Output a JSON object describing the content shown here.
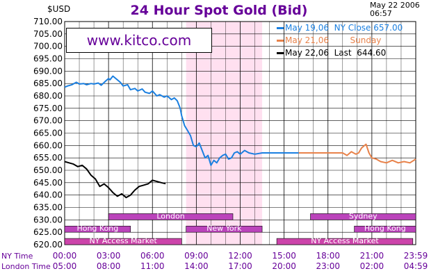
{
  "header": {
    "title": "24 Hour Spot Gold (Bid)",
    "unit": "$USD",
    "date": "May 22 2006",
    "time": "06:57"
  },
  "brand": "www.kitco.com",
  "colors": {
    "title": "#660099",
    "series_ny_close": "#1a7fe0",
    "series_sunday": "#e8824a",
    "series_last": "#000000",
    "market_band": "#bb44bb",
    "ny_pink": "#cc44aa",
    "highlight": "#ffe0f0"
  },
  "x_axis": {
    "rows": [
      {
        "label": "NY Time",
        "ticks": [
          "00:00",
          "03:00",
          "06:00",
          "09:00",
          "12:00",
          "15:00",
          "18:00",
          "21:00",
          "23:59"
        ]
      },
      {
        "label": "London Time",
        "ticks": [
          "05:00",
          "08:00",
          "11:00",
          "14:00",
          "17:00",
          "20:00",
          "23:00",
          "02:00",
          "04:59"
        ]
      }
    ]
  },
  "markets": [
    {
      "label": "London",
      "start": 3,
      "end": 11.5,
      "lane": 1,
      "color": "#bb44bb"
    },
    {
      "label": "Hong Kong",
      "start": 0,
      "end": 4.5,
      "lane": 2,
      "color": "#bb44bb"
    },
    {
      "label": "New York",
      "start": 8.3,
      "end": 13.5,
      "lane": 2,
      "color": "#bb44bb"
    },
    {
      "label": "NY Access Market",
      "start": 0,
      "end": 8,
      "lane": 3,
      "color": "#cc44aa"
    },
    {
      "label": "Sydney",
      "start": 16.8,
      "end": 24,
      "lane": 1,
      "color": "#bb44bb"
    },
    {
      "label": "Hong Kong",
      "start": 19.8,
      "end": 24,
      "lane": 2,
      "color": "#bb44bb"
    },
    {
      "label": "NY Access Market",
      "start": 14.5,
      "end": 23.8,
      "lane": 3,
      "color": "#cc44aa"
    }
  ],
  "highlight_range": [
    8.3,
    13.5
  ],
  "legend": [
    {
      "text": "May 19,06  NY Close 657.00",
      "color": "#1a7fe0"
    },
    {
      "text": "May 21,06        Sunday",
      "color": "#e8824a"
    },
    {
      "text": "May 22,06  Last  644.60",
      "color": "#000000"
    }
  ],
  "chart_data": {
    "type": "line",
    "title": "24 Hour Spot Gold (Bid)",
    "ylabel": "$USD",
    "xlim": [
      0,
      24
    ],
    "ylim": [
      620,
      710
    ],
    "yticks": [
      "620.00",
      "625.00",
      "630.00",
      "635.00",
      "640.00",
      "645.00",
      "650.00",
      "655.00",
      "660.00",
      "665.00",
      "670.00",
      "675.00",
      "680.00",
      "685.00",
      "690.00",
      "695.00",
      "700.00",
      "705.00",
      "710.00"
    ],
    "grid": true,
    "legend_position": "top-right",
    "series": [
      {
        "name": "May 19,06 NY Close 657.00",
        "color": "#1a7fe0",
        "x": [
          0,
          0.2,
          0.5,
          0.8,
          1.0,
          1.3,
          1.5,
          1.8,
          2.0,
          2.3,
          2.5,
          2.8,
          3.0,
          3.1,
          3.3,
          3.5,
          3.8,
          4.0,
          4.3,
          4.5,
          4.8,
          5.0,
          5.3,
          5.5,
          5.8,
          6.0,
          6.3,
          6.5,
          6.8,
          7.0,
          7.3,
          7.5,
          7.7,
          7.9,
          8.0,
          8.2,
          8.4,
          8.6,
          8.8,
          9.0,
          9.2,
          9.4,
          9.6,
          9.8,
          10.0,
          10.2,
          10.4,
          10.6,
          10.8,
          11.0,
          11.2,
          11.4,
          11.6,
          11.8,
          12.0,
          12.3,
          12.6,
          13.0,
          13.5,
          14.0,
          15.0,
          16.0
        ],
        "y": [
          683.5,
          684.0,
          684.5,
          685.5,
          684.8,
          685.0,
          684.5,
          685.0,
          684.8,
          685.2,
          684.3,
          686.0,
          687.0,
          686.5,
          688.0,
          687.0,
          685.5,
          684.0,
          684.5,
          682.5,
          683.0,
          682.0,
          682.8,
          681.5,
          681.0,
          682.0,
          680.0,
          680.5,
          679.5,
          680.0,
          678.5,
          679.2,
          678.0,
          675.0,
          672.0,
          668.0,
          666.0,
          664.0,
          660.0,
          659.5,
          661.0,
          658.0,
          655.0,
          656.0,
          652.0,
          654.0,
          653.0,
          655.0,
          656.0,
          656.5,
          654.5,
          655.0,
          657.0,
          657.5,
          656.5,
          658.0,
          657.0,
          656.5,
          657.0,
          657.0,
          657.0,
          657.0
        ]
      },
      {
        "name": "May 21,06 Sunday",
        "color": "#e8824a",
        "x": [
          16.0,
          17.0,
          18.0,
          18.5,
          19.0,
          19.3,
          19.6,
          19.9,
          20.1,
          20.3,
          20.6,
          20.8,
          21.0,
          21.3,
          21.6,
          22.0,
          22.4,
          22.8,
          23.2,
          23.6,
          24.0
        ],
        "y": [
          657.0,
          657.0,
          657.0,
          657.0,
          657.0,
          656.0,
          657.5,
          656.5,
          657.0,
          659.0,
          660.5,
          657.0,
          655.0,
          654.5,
          653.5,
          653.0,
          654.0,
          653.0,
          653.5,
          653.0,
          654.5
        ]
      },
      {
        "name": "May 22,06 Last 644.60",
        "color": "#000000",
        "x": [
          0,
          0.3,
          0.6,
          0.9,
          1.2,
          1.5,
          1.8,
          2.1,
          2.4,
          2.7,
          3.0,
          3.3,
          3.6,
          3.9,
          4.2,
          4.5,
          4.8,
          5.1,
          5.4,
          5.7,
          6.0,
          6.3,
          6.6,
          6.9
        ],
        "y": [
          653.5,
          653.0,
          652.5,
          651.5,
          652.0,
          650.5,
          648.0,
          646.5,
          643.5,
          644.5,
          643.0,
          641.0,
          639.5,
          640.5,
          639.0,
          640.0,
          642.0,
          643.5,
          644.0,
          644.5,
          646.0,
          645.5,
          645.0,
          644.6
        ]
      }
    ]
  }
}
